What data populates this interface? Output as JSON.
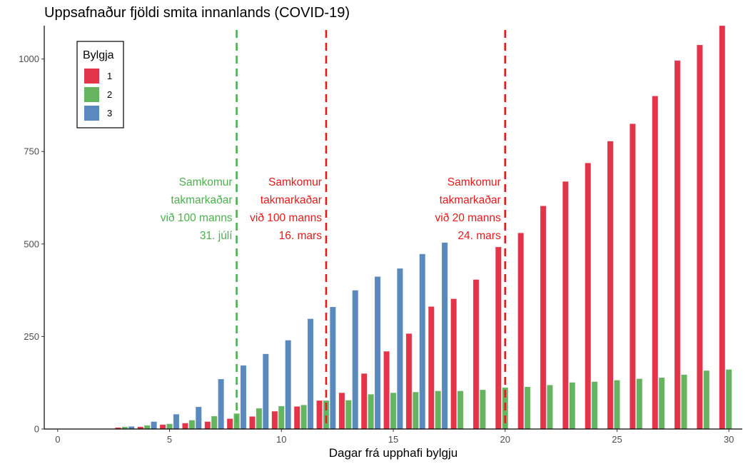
{
  "chart_data": {
    "type": "bar",
    "title": "Uppsafnaður fjöldi smita innanlands (COVID-19)",
    "xlabel": "Dagar frá upphafi bylgju",
    "ylabel": "",
    "xlim": [
      -0.6,
      30.6
    ],
    "ylim": [
      0,
      1090
    ],
    "x_ticks": [
      0,
      5,
      10,
      15,
      20,
      25,
      30
    ],
    "x_tick_labels": [
      "0",
      "5",
      "10",
      "15",
      "20",
      "25",
      "30"
    ],
    "y_ticks": [
      0,
      250,
      500,
      750,
      1000
    ],
    "y_tick_labels": [
      "0",
      "250",
      "500",
      "750",
      "1000"
    ],
    "grid": false,
    "bar_position": "dodge",
    "legend": {
      "title": "Bylgja",
      "placement": "top-left",
      "entries": [
        "1",
        "2",
        "3"
      ]
    },
    "series": [
      {
        "name": "1",
        "color": "#E3344A",
        "x": [
          3,
          4,
          5,
          6,
          7,
          8,
          9,
          10,
          11,
          12,
          13,
          14,
          15,
          16,
          17,
          18,
          19,
          20,
          21,
          22,
          23,
          24,
          25,
          26,
          27,
          28,
          29,
          30
        ],
        "values": [
          4,
          6,
          12,
          16,
          20,
          28,
          34,
          48,
          61,
          77,
          98,
          150,
          210,
          258,
          331,
          352,
          404,
          492,
          530,
          603,
          669,
          719,
          778,
          825,
          900,
          996,
          1038,
          1090
        ]
      },
      {
        "name": "2",
        "color": "#66B45F",
        "x": [
          3,
          4,
          5,
          6,
          7,
          8,
          9,
          10,
          11,
          12,
          13,
          14,
          15,
          16,
          17,
          18,
          19,
          20,
          21,
          22,
          23,
          24,
          25,
          26,
          27,
          28,
          29,
          30
        ],
        "values": [
          6,
          10,
          14,
          24,
          35,
          42,
          56,
          62,
          65,
          77,
          78,
          94,
          98,
          100,
          103,
          103,
          106,
          112,
          114,
          119,
          126,
          128,
          132,
          136,
          139,
          147,
          158,
          161
        ]
      },
      {
        "name": "3",
        "color": "#5A89BE",
        "x": [
          2,
          3,
          4,
          5,
          6,
          7,
          8,
          9,
          10,
          11,
          12,
          13,
          14,
          15,
          16,
          17
        ],
        "values": [
          1,
          7,
          20,
          40,
          60,
          135,
          172,
          203,
          240,
          298,
          330,
          375,
          412,
          434,
          473,
          504
        ]
      }
    ],
    "vlines": [
      {
        "x": 8,
        "color": "#4CAF50",
        "label_lines": [
          "Samkomur",
          "takmarkaðar",
          "við 100 manns",
          "31. júlí"
        ]
      },
      {
        "x": 12,
        "color": "#E41A1C",
        "label_lines": [
          "Samkomur",
          "takmarkaðar",
          "við 100 manns",
          "16. mars"
        ]
      },
      {
        "x": 20,
        "color": "#E41A1C",
        "label_lines": [
          "Samkomur",
          "takmarkaðar",
          "við 20 manns",
          "24. mars"
        ]
      }
    ]
  }
}
